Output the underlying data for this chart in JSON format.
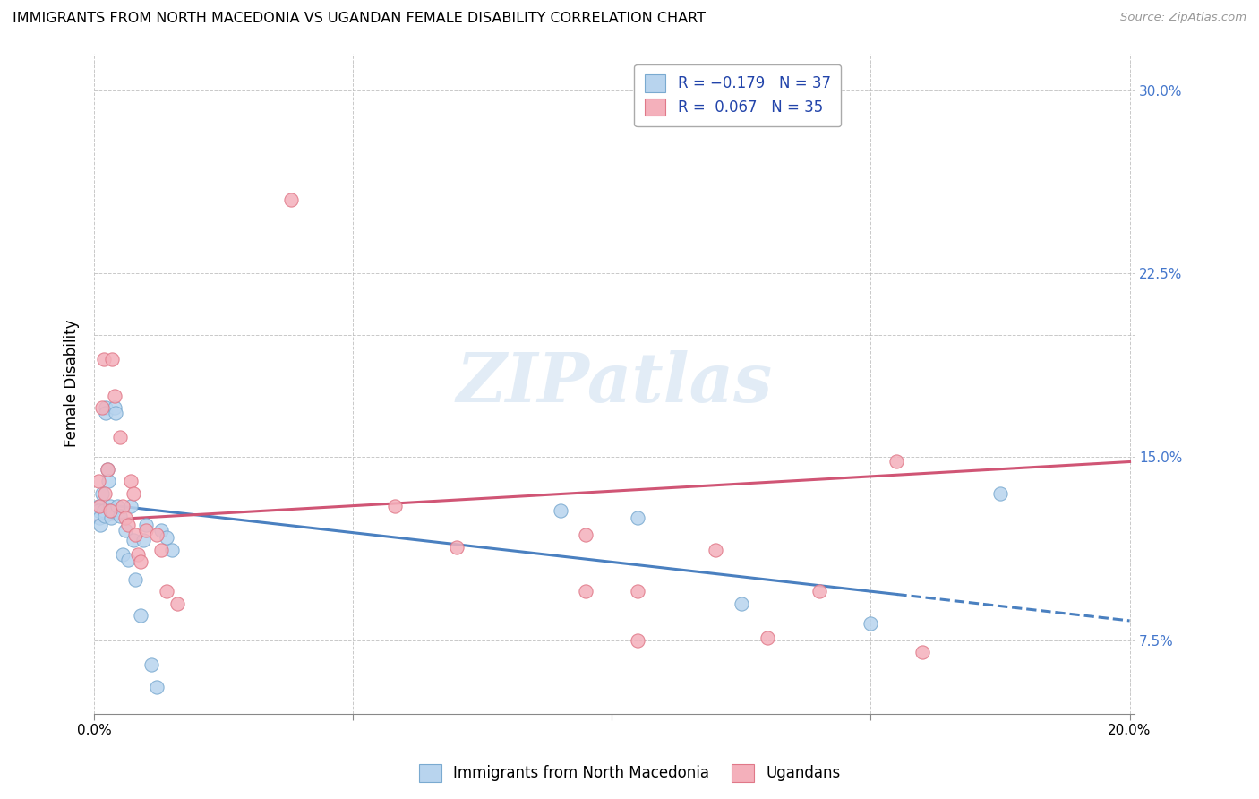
{
  "title": "IMMIGRANTS FROM NORTH MACEDONIA VS UGANDAN FEMALE DISABILITY CORRELATION CHART",
  "source": "Source: ZipAtlas.com",
  "ylabel": "Female Disability",
  "color_blue": "#B8D4EE",
  "color_pink": "#F4B0BB",
  "color_blue_edge": "#7AAAD0",
  "color_pink_edge": "#E07888",
  "watermark": "ZIPatlas",
  "series1_label": "Immigrants from North Macedonia",
  "series2_label": "Ugandans",
  "xlim": [
    0.0,
    0.201
  ],
  "ylim": [
    0.045,
    0.315
  ],
  "x_tick_positions": [
    0.0,
    0.05,
    0.1,
    0.15,
    0.2
  ],
  "x_tick_labels": [
    "0.0%",
    "",
    "",
    "",
    "20.0%"
  ],
  "y_tick_positions": [
    0.075,
    0.1,
    0.15,
    0.2,
    0.225,
    0.3
  ],
  "y_tick_labels": [
    "7.5%",
    "",
    "15.0%",
    "",
    "22.5%",
    "30.0%"
  ],
  "trendline1_x0": 0.0,
  "trendline1_y0": 0.131,
  "trendline1_x1": 0.2,
  "trendline1_y1": 0.083,
  "trendline1_solid_end": 0.155,
  "trendline2_x0": 0.0,
  "trendline2_y0": 0.124,
  "trendline2_x1": 0.2,
  "trendline2_y1": 0.148,
  "series1_x": [
    0.0008,
    0.0008,
    0.001,
    0.0012,
    0.0015,
    0.0018,
    0.002,
    0.0022,
    0.0022,
    0.0025,
    0.0028,
    0.003,
    0.0032,
    0.0035,
    0.004,
    0.0042,
    0.0045,
    0.005,
    0.0055,
    0.006,
    0.0065,
    0.007,
    0.0075,
    0.008,
    0.009,
    0.0095,
    0.01,
    0.011,
    0.012,
    0.013,
    0.014,
    0.015,
    0.09,
    0.105,
    0.125,
    0.15,
    0.175
  ],
  "series1_y": [
    0.13,
    0.128,
    0.125,
    0.122,
    0.135,
    0.128,
    0.126,
    0.17,
    0.168,
    0.145,
    0.14,
    0.13,
    0.125,
    0.128,
    0.17,
    0.168,
    0.13,
    0.126,
    0.11,
    0.12,
    0.108,
    0.13,
    0.116,
    0.1,
    0.085,
    0.116,
    0.122,
    0.065,
    0.056,
    0.12,
    0.117,
    0.112,
    0.128,
    0.125,
    0.09,
    0.082,
    0.135
  ],
  "series2_x": [
    0.0008,
    0.001,
    0.0015,
    0.0018,
    0.002,
    0.0025,
    0.003,
    0.0035,
    0.004,
    0.005,
    0.0055,
    0.006,
    0.0065,
    0.007,
    0.0075,
    0.008,
    0.0085,
    0.009,
    0.01,
    0.012,
    0.013,
    0.014,
    0.016,
    0.038,
    0.058,
    0.07,
    0.095,
    0.105,
    0.12,
    0.13,
    0.14,
    0.155,
    0.095,
    0.105,
    0.16
  ],
  "series2_y": [
    0.14,
    0.13,
    0.17,
    0.19,
    0.135,
    0.145,
    0.128,
    0.19,
    0.175,
    0.158,
    0.13,
    0.125,
    0.122,
    0.14,
    0.135,
    0.118,
    0.11,
    0.107,
    0.12,
    0.118,
    0.112,
    0.095,
    0.09,
    0.255,
    0.13,
    0.113,
    0.118,
    0.095,
    0.112,
    0.076,
    0.095,
    0.148,
    0.095,
    0.075,
    0.07
  ]
}
